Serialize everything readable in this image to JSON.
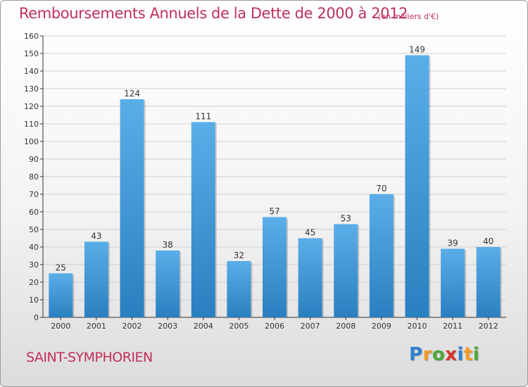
{
  "header": {
    "title": "Remboursements Annuels de la Dette de 2000 à 2012",
    "subtitle": "(en milliers d'€)"
  },
  "footer": {
    "commune": "SAINT-SYMPHORIEN",
    "brand": "Proxiti",
    "brand_letters": [
      {
        "ch": "P",
        "color": "#2f7fd0"
      },
      {
        "ch": "r",
        "color": "#f29a1f"
      },
      {
        "ch": "o",
        "color": "#4aa83a"
      },
      {
        "ch": "x",
        "color": "#d6342b"
      },
      {
        "ch": "i",
        "color": "#2f7fd0"
      },
      {
        "ch": "t",
        "color": "#f29a1f"
      },
      {
        "ch": "i",
        "color": "#4aa83a"
      }
    ]
  },
  "colors": {
    "bar_top": "#5aaee8",
    "bar_bottom": "#2a7fc0",
    "accent": "#c0305a",
    "grid": "#d0d0d0",
    "axis": "#333333"
  },
  "chart_data": {
    "type": "bar",
    "categories": [
      "2000",
      "2001",
      "2002",
      "2003",
      "2004",
      "2005",
      "2006",
      "2007",
      "2008",
      "2009",
      "2010",
      "2011",
      "2012"
    ],
    "values": [
      25,
      43,
      124,
      38,
      111,
      32,
      57,
      45,
      53,
      70,
      149,
      39,
      40
    ],
    "ylim": [
      0,
      160
    ],
    "yticks": [
      0,
      10,
      20,
      30,
      40,
      50,
      60,
      70,
      80,
      90,
      100,
      110,
      120,
      130,
      140,
      150,
      160
    ],
    "grid": true,
    "data_labels": true
  }
}
